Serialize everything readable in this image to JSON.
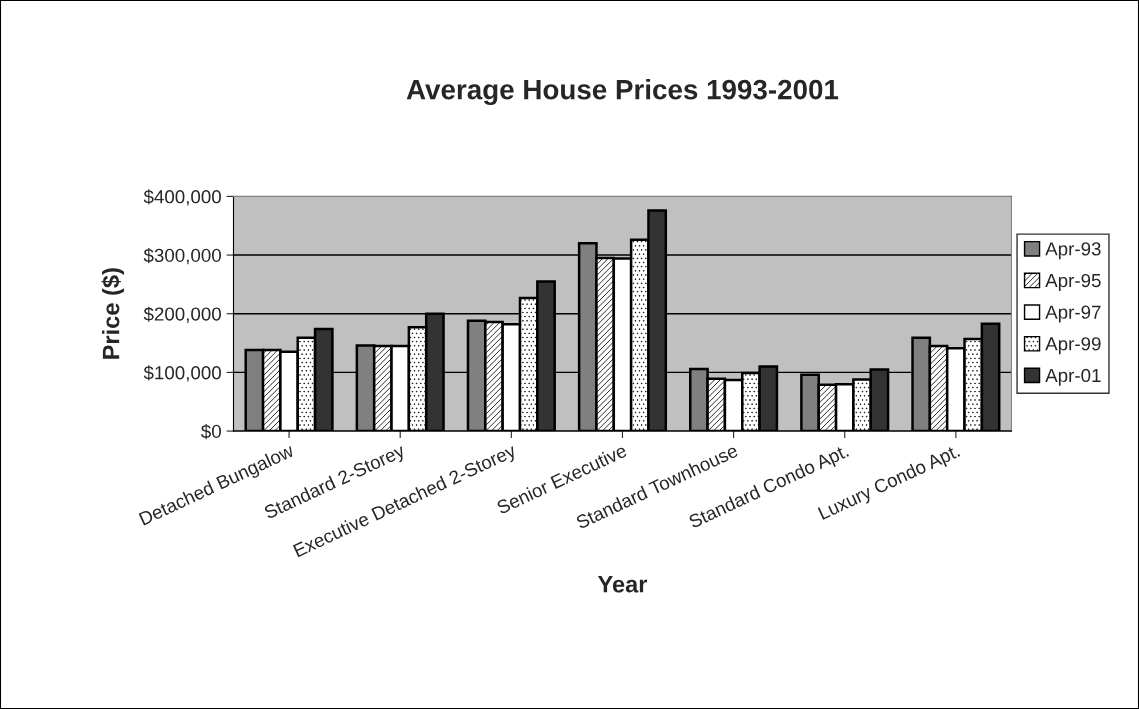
{
  "chart_data": {
    "type": "bar",
    "title": "Average House Prices 1993-2001",
    "xlabel": "Year",
    "ylabel": "Price ($)",
    "categories": [
      "Detached Bungalow",
      "Standard 2-Storey",
      "Executive Detached 2-Storey",
      "Senior Executive",
      "Standard Townhouse",
      "Standard Condo Apt.",
      "Luxury Condo Apt."
    ],
    "series": [
      {
        "name": "Apr-93",
        "color": "#808080",
        "values": [
          138000,
          146000,
          188000,
          320000,
          106000,
          96000,
          159000
        ]
      },
      {
        "name": "Apr-95",
        "color": "#ffffff",
        "values": [
          138000,
          145000,
          186000,
          295000,
          89000,
          79000,
          145000
        ]
      },
      {
        "name": "Apr-97",
        "color": "#ffffff",
        "values": [
          135000,
          145000,
          182000,
          294000,
          87000,
          80000,
          141000
        ]
      },
      {
        "name": "Apr-99",
        "color": "#ffffff",
        "values": [
          159000,
          177000,
          227000,
          326000,
          99000,
          88000,
          157000
        ]
      },
      {
        "name": "Apr-01",
        "color": "#333333",
        "values": [
          174000,
          200000,
          255000,
          376000,
          110000,
          105000,
          183000
        ]
      }
    ],
    "ylim": [
      0,
      400000
    ],
    "yticks": [
      {
        "value": 0,
        "label": "$0"
      },
      {
        "value": 100000,
        "label": "$100,000"
      },
      {
        "value": 200000,
        "label": "$200,000"
      },
      {
        "value": 300000,
        "label": "$300,000"
      },
      {
        "value": 400000,
        "label": "$400,000"
      }
    ],
    "grid": "y",
    "legend": "right"
  }
}
